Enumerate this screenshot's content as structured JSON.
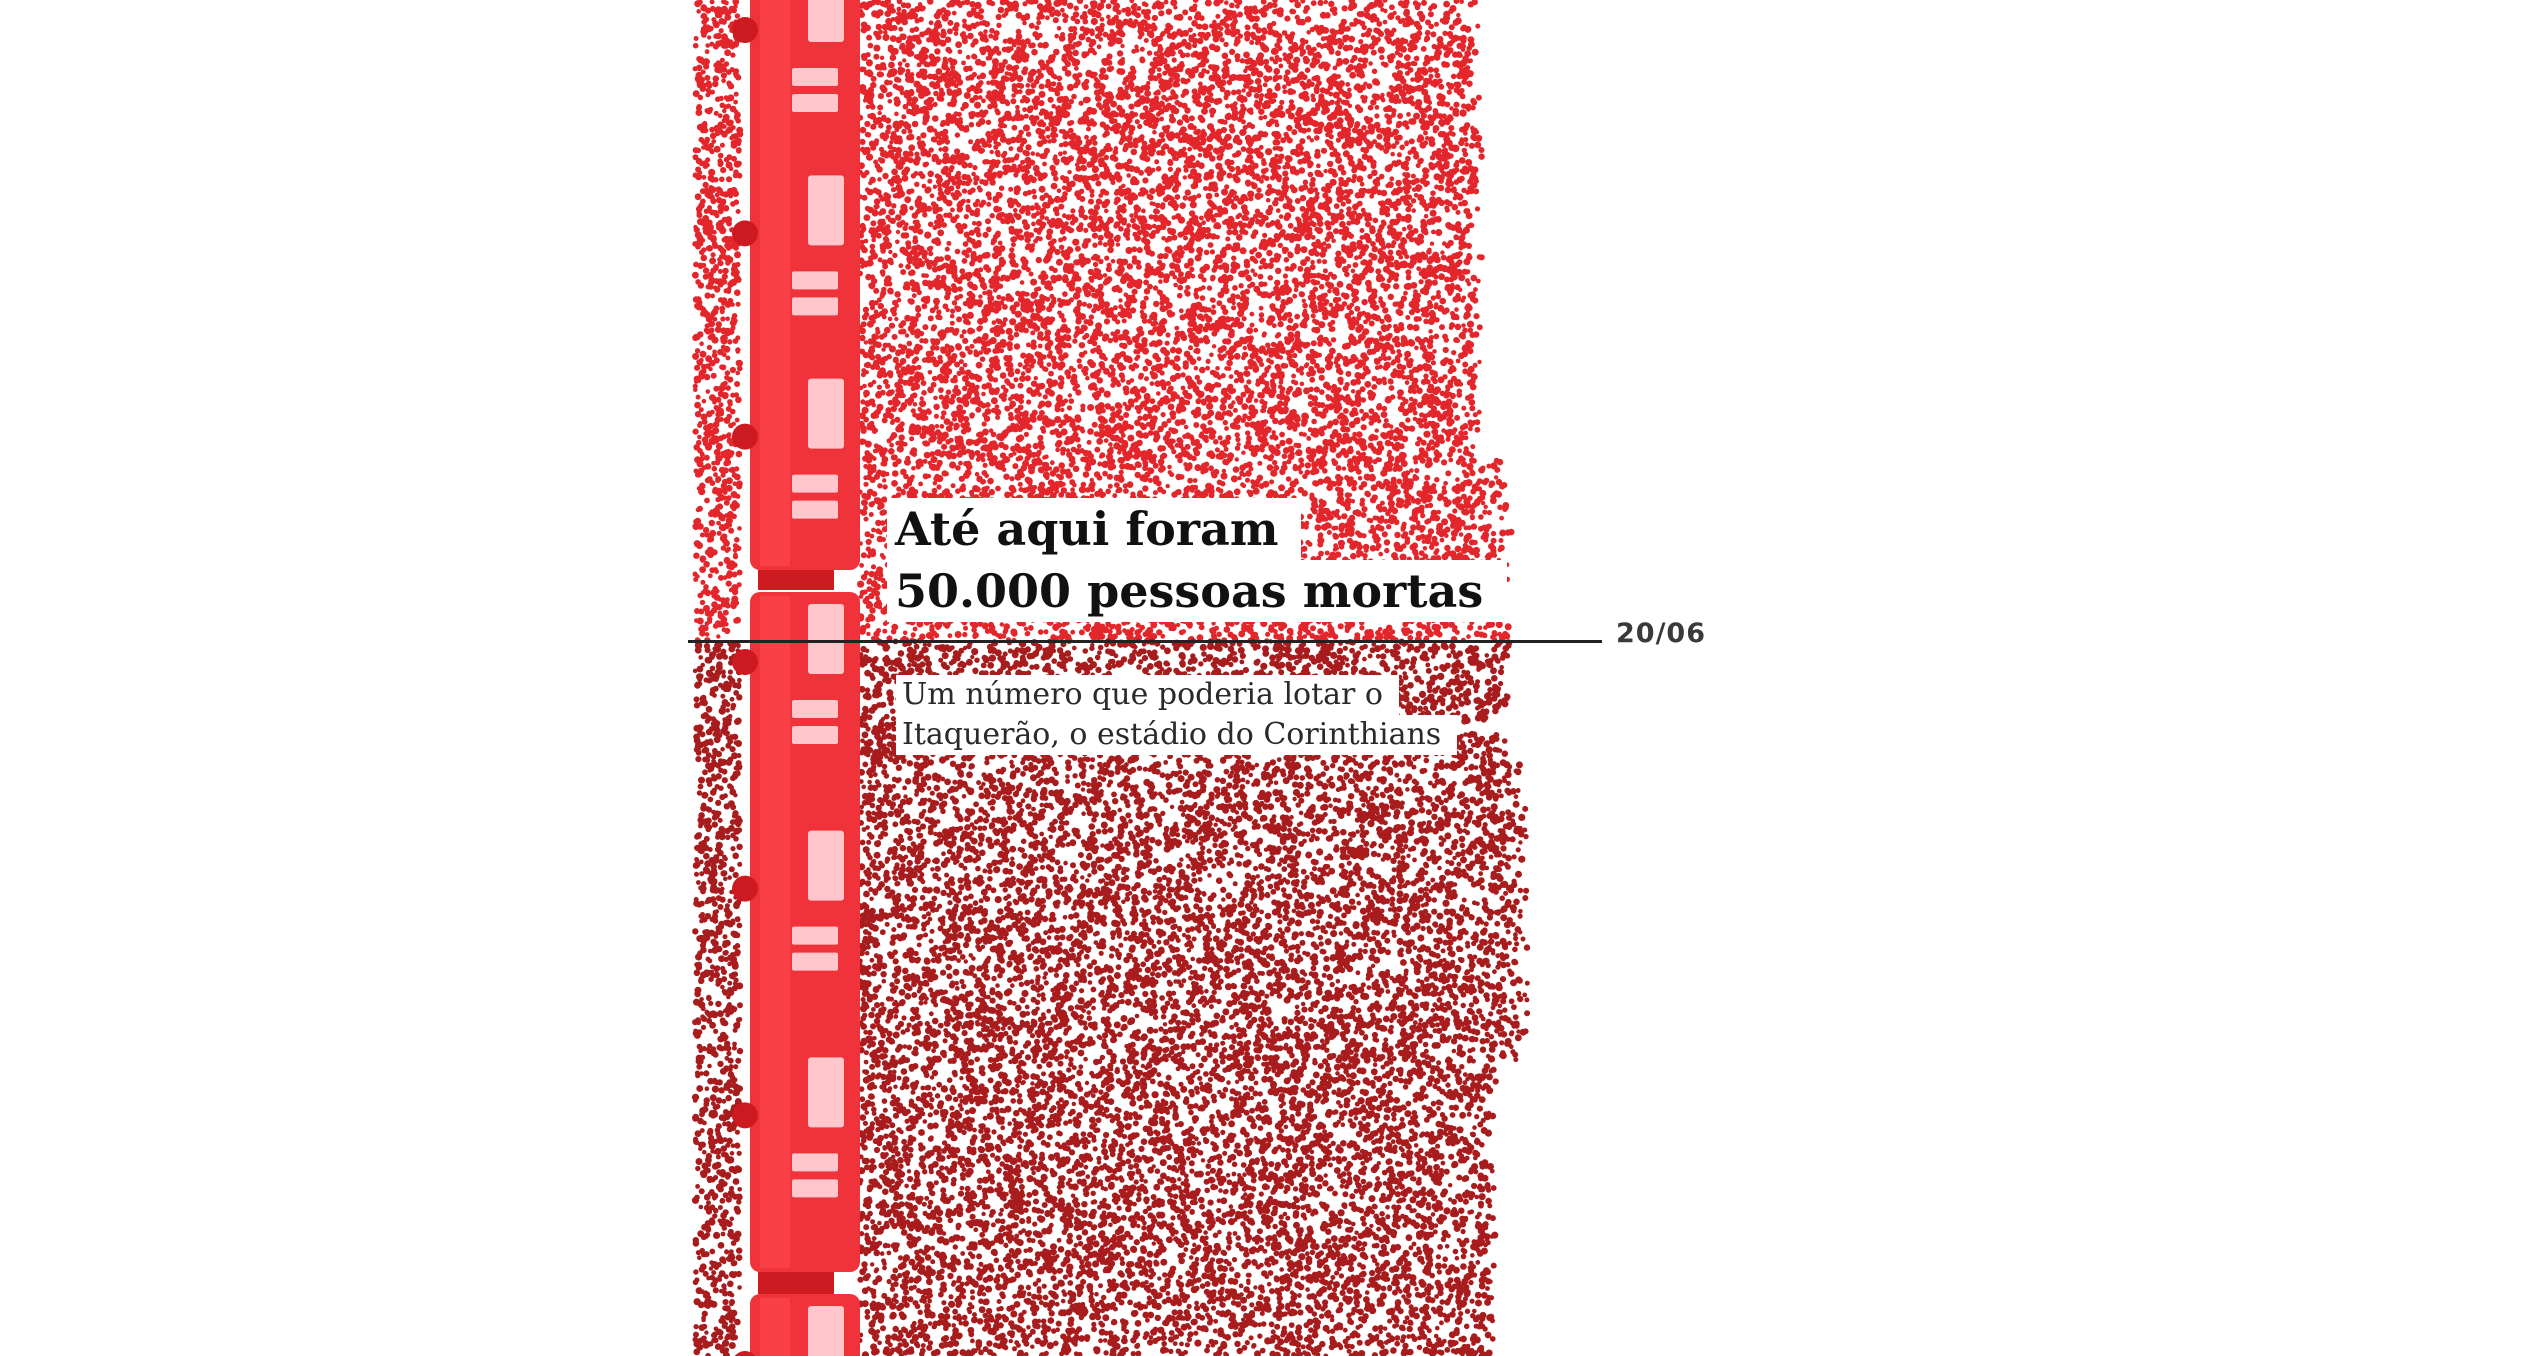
{
  "annotation": {
    "headline_line1": "Até aqui foram",
    "headline_line2": "50.000 pessoas mortas",
    "subtitle_line1": "Um número que poderia lotar o",
    "subtitle_line2": "Itaquerão, o estádio do Corinthians",
    "date": "20/06"
  },
  "colors": {
    "dots_before": "#e3262b",
    "dots_after": "#a81c1e",
    "train_body": "#f0333a",
    "train_window": "#ffc7cc",
    "train_coupling": "#cc1a20",
    "marker_line": "#222222"
  },
  "icons": [
    "train-icon"
  ]
}
